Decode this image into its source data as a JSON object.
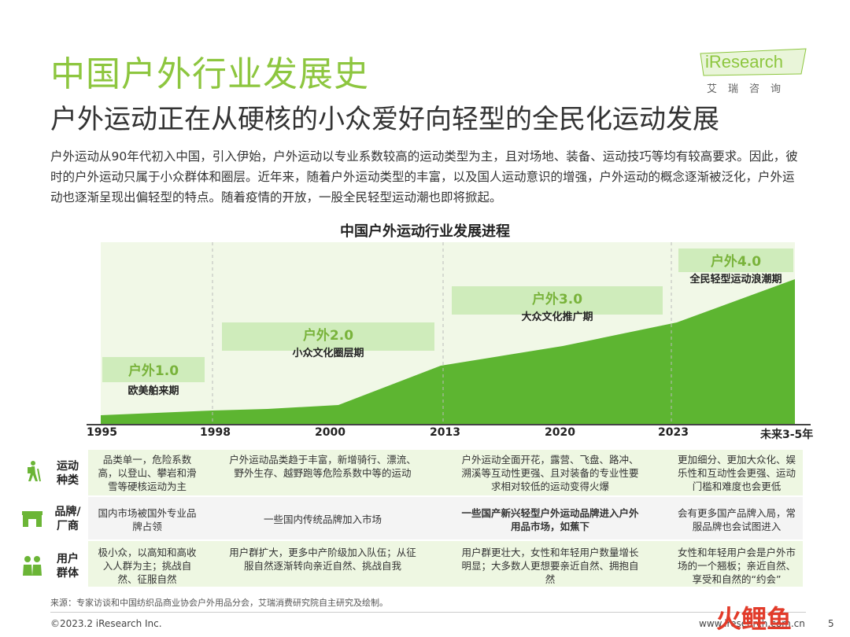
{
  "page": {
    "title": "中国户外行业发展史",
    "subtitle": "户外运动正在从硬核的小众爱好向轻型的全民化运动发展",
    "intro": "户外运动从90年代初入中国，引入伊始，户外运动以专业系数较高的运动类型为主，且对场地、装备、运动技巧等均有较高要求。因此，彼时的户外运动只属于小众群体和圈层。近年来，随着户外运动类型的丰富，以及国人运动意识的增强，户外运动的概念逐渐被泛化，户外运动也逐渐呈现出偏轻型的特点。随着疫情的开放，一股全民轻型运动潮也即将掀起。"
  },
  "logo": {
    "word": "iResearch",
    "sub": "艾瑞咨询"
  },
  "chart": {
    "title": "中国户外运动行业发展进程",
    "years": [
      "1995",
      "1998",
      "2000",
      "2013",
      "2020",
      "2023",
      "未来3-5年"
    ],
    "eras": [
      {
        "label": "户外1.0",
        "desc": "欧美舶来期"
      },
      {
        "label": "户外2.0",
        "desc": "小众文化圈层期"
      },
      {
        "label": "户外3.0",
        "desc": "大众文化推广期"
      },
      {
        "label": "户外4.0",
        "desc": "全民轻型运动浪潮期"
      }
    ],
    "colors": {
      "area": "#5db531",
      "bg": "#f4f9ec",
      "accent": "#8dc63f"
    }
  },
  "table": {
    "rows": [
      {
        "icon": "hiker-icon",
        "head": "运动种类",
        "cells": [
          "品类单一，危险系数高，以登山、攀岩和滑雪等硬核运动为主",
          "户外运动品类趋于丰富，新增骑行、漂流、野外生存、越野跑等危险系数中等的运动",
          "户外运动全面开花，露营、飞盘、路冲、溯溪等互动性更强、且对装备的专业性要求相对较低的运动变得火爆",
          "更加细分、更加大众化、娱乐性和互动性会更强、运动门槛和难度也会更低"
        ]
      },
      {
        "icon": "store-icon",
        "head": "品牌/厂商",
        "cells": [
          "国内市场被国外专业品牌占领",
          "一些国内传统品牌加入市场",
          "一些国产新兴轻型户外运动品牌进入户外用品市场，如蕉下",
          "会有更多国产品牌入局，常服品牌也会试图进入"
        ]
      },
      {
        "icon": "users-icon",
        "head": "用户群体",
        "cells": [
          "极小众，以高知和高收入人群为主；挑战自然、征服自然",
          "用户群扩大，更多中产阶级加入队伍；从征服自然逐渐转向亲近自然、挑战自我",
          "用户群更壮大，女性和年轻用户数量增长明显；大多数人更想要亲近自然、拥抱自然",
          "女性和年轻用户会是户外市场的一个翘板；亲近自然、享受和自然的“约会”"
        ]
      }
    ]
  },
  "footer": {
    "source": "来源：专家访谈和中国纺织品商业协会户外用品分会，艾瑞消费研究院自主研究及绘制。",
    "copyright": "©2023.2 iResearch Inc.",
    "site": "www.iresearch.com.cn",
    "page": "5",
    "watermark": "火鲤鱼"
  }
}
